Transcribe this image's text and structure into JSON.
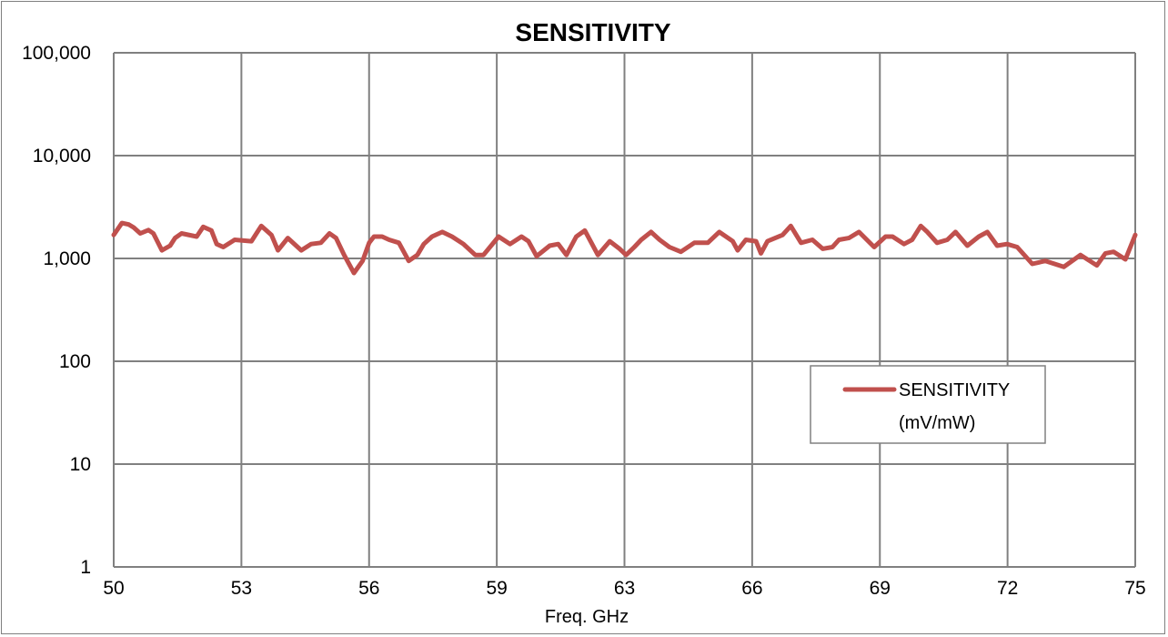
{
  "chart_data": {
    "type": "line",
    "title": "SENSITIVITY",
    "xlabel": "Freq. GHz",
    "ylabel": "",
    "xlim": [
      50,
      75
    ],
    "ylim": [
      1,
      100000
    ],
    "yscale": "log",
    "grid": true,
    "legend_position": "lower-right",
    "xtick_labels": [
      "50",
      "53",
      "56",
      "59",
      "63",
      "66",
      "69",
      "72",
      "75"
    ],
    "ytick_labels": [
      "1",
      "10",
      "100",
      "1,000",
      "10,000",
      "100,000"
    ],
    "ytick_values": [
      1,
      10,
      100,
      1000,
      10000,
      100000
    ],
    "color": "#c0504d",
    "series": [
      {
        "name": "SENSITIVITY (mV/mW)",
        "legend_lines": [
          "SENSITIVITY",
          "(mV/mW)"
        ],
        "x": [
          50.0,
          50.2,
          50.37,
          50.49,
          50.65,
          50.85,
          50.97,
          51.18,
          51.38,
          51.5,
          51.66,
          52.03,
          52.19,
          52.39,
          52.52,
          52.68,
          52.96,
          53.37,
          53.61,
          53.86,
          54.02,
          54.26,
          54.59,
          54.83,
          55.07,
          55.28,
          55.44,
          55.64,
          55.88,
          56.09,
          56.25,
          56.37,
          56.57,
          56.74,
          56.98,
          57.22,
          57.43,
          57.59,
          57.79,
          58.04,
          58.28,
          58.56,
          58.85,
          59.05,
          59.42,
          59.7,
          59.98,
          60.15,
          60.35,
          60.67,
          60.88,
          61.08,
          61.32,
          61.53,
          61.85,
          62.14,
          62.38,
          62.54,
          62.74,
          62.91,
          63.15,
          63.36,
          63.6,
          63.88,
          64.21,
          64.54,
          64.82,
          65.15,
          65.27,
          65.47,
          65.72,
          65.84,
          66.0,
          66.37,
          66.57,
          66.82,
          67.1,
          67.35,
          67.59,
          67.75,
          67.99,
          68.24,
          68.61,
          68.89,
          69.06,
          69.34,
          69.54,
          69.75,
          69.91,
          70.15,
          70.4,
          70.6,
          70.89,
          71.17,
          71.38,
          71.62,
          71.86,
          72.11,
          72.48,
          72.8,
          73.25,
          73.66,
          74.06,
          74.27,
          74.47,
          74.76,
          75.0
        ],
        "y": [
          1690,
          2210,
          2140,
          2000,
          1750,
          1890,
          1750,
          1200,
          1330,
          1580,
          1750,
          1630,
          2030,
          1870,
          1380,
          1290,
          1520,
          1470,
          2070,
          1690,
          1200,
          1580,
          1200,
          1380,
          1420,
          1750,
          1580,
          1080,
          722,
          946,
          1420,
          1630,
          1630,
          1520,
          1420,
          946,
          1080,
          1380,
          1630,
          1810,
          1630,
          1380,
          1080,
          1080,
          1630,
          1380,
          1630,
          1470,
          1050,
          1330,
          1380,
          1080,
          1630,
          1870,
          1080,
          1470,
          1240,
          1080,
          1290,
          1520,
          1810,
          1520,
          1290,
          1160,
          1420,
          1420,
          1810,
          1470,
          1200,
          1520,
          1470,
          1120,
          1470,
          1690,
          2070,
          1420,
          1520,
          1240,
          1290,
          1520,
          1580,
          1810,
          1290,
          1630,
          1630,
          1380,
          1520,
          2070,
          1810,
          1420,
          1520,
          1810,
          1330,
          1630,
          1810,
          1330,
          1380,
          1290,
          885,
          946,
          827,
          1080,
          855,
          1120,
          1160,
          980,
          1690
        ]
      }
    ]
  }
}
